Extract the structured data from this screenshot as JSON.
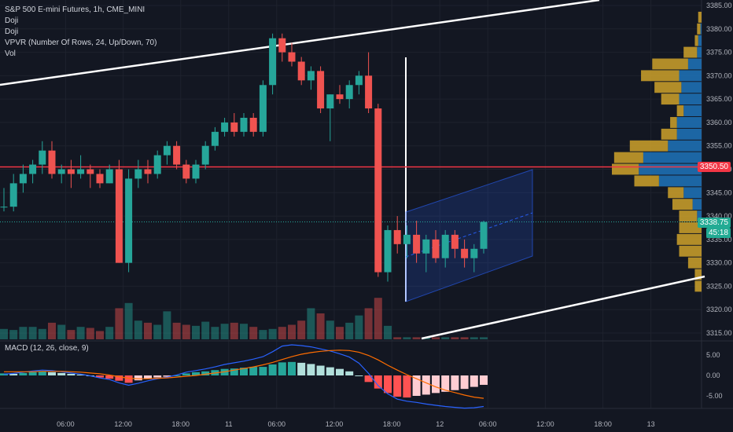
{
  "legend": {
    "symbol": "S&P 500 E-mini Futures, 1h, CME_MINI",
    "indicator1": "Doji",
    "indicator2": "Doji",
    "vpvr": "VPVR (Number Of Rows, 24, Up/Down, 70)",
    "vol": "Vol",
    "macd": "MACD (12, 26, close, 9)"
  },
  "price_axis": {
    "ticks": [
      "3385.00",
      "3380.00",
      "3375.00",
      "3370.00",
      "3365.00",
      "3360.00",
      "3355.00",
      "3350.00",
      "3345.00",
      "3340.00",
      "3335.00",
      "3330.00",
      "3325.00",
      "3320.00",
      "3315.00"
    ],
    "tick_values": [
      3385,
      3380,
      3375,
      3370,
      3365,
      3360,
      3355,
      3350,
      3345,
      3340,
      3335,
      3330,
      3325,
      3320,
      3315
    ],
    "red_tag": "3350.50",
    "last_price": "3338.75",
    "countdown": "45:18"
  },
  "macd_axis": {
    "ticks": [
      "5.00",
      "0.00",
      "-5.00"
    ],
    "tick_values": [
      5,
      0,
      -5
    ]
  },
  "time_axis": {
    "labels": [
      "06:00",
      "12:00",
      "18:00",
      "11",
      "06:00",
      "12:00",
      "18:00",
      "12",
      "06:00",
      "12:00",
      "18:00",
      "13"
    ],
    "bar_index": [
      2,
      8,
      14,
      19,
      24,
      30,
      36,
      41,
      46,
      52,
      58,
      63
    ]
  },
  "colors": {
    "background": "#131722",
    "up": "#26a69a",
    "down": "#ef5350",
    "red_line": "#f23645",
    "vp_up": "#1e6fb3",
    "vp_down": "#c49a2a"
  },
  "chart_data": {
    "type": "candlestick",
    "bars": [
      {
        "o": 3342,
        "h": 3346,
        "l": 3341,
        "c": 3342
      },
      {
        "o": 3342,
        "h": 3349,
        "l": 3341,
        "c": 3347
      },
      {
        "o": 3347,
        "h": 3351,
        "l": 3345,
        "c": 3349
      },
      {
        "o": 3349,
        "h": 3352,
        "l": 3347,
        "c": 3351
      },
      {
        "o": 3351,
        "h": 3356,
        "l": 3349,
        "c": 3354
      },
      {
        "o": 3354,
        "h": 3356,
        "l": 3348,
        "c": 3349
      },
      {
        "o": 3349,
        "h": 3351,
        "l": 3347,
        "c": 3350
      },
      {
        "o": 3350,
        "h": 3352,
        "l": 3346,
        "c": 3349
      },
      {
        "o": 3349,
        "h": 3353,
        "l": 3348,
        "c": 3350
      },
      {
        "o": 3350,
        "h": 3351,
        "l": 3346,
        "c": 3349
      },
      {
        "o": 3349,
        "h": 3350,
        "l": 3346,
        "c": 3347
      },
      {
        "o": 3347,
        "h": 3351,
        "l": 3347,
        "c": 3350
      },
      {
        "o": 3350,
        "h": 3352,
        "l": 3330,
        "c": 3330
      },
      {
        "o": 3330,
        "h": 3350,
        "l": 3328,
        "c": 3348
      },
      {
        "o": 3348,
        "h": 3352,
        "l": 3346,
        "c": 3350
      },
      {
        "o": 3350,
        "h": 3352,
        "l": 3347,
        "c": 3349
      },
      {
        "o": 3349,
        "h": 3354,
        "l": 3348,
        "c": 3353
      },
      {
        "o": 3353,
        "h": 3356,
        "l": 3351,
        "c": 3355
      },
      {
        "o": 3355,
        "h": 3356,
        "l": 3350,
        "c": 3351
      },
      {
        "o": 3351,
        "h": 3352,
        "l": 3347,
        "c": 3348
      },
      {
        "o": 3348,
        "h": 3352,
        "l": 3347,
        "c": 3351
      },
      {
        "o": 3351,
        "h": 3356,
        "l": 3350,
        "c": 3355
      },
      {
        "o": 3355,
        "h": 3359,
        "l": 3354,
        "c": 3358
      },
      {
        "o": 3358,
        "h": 3361,
        "l": 3357,
        "c": 3360
      },
      {
        "o": 3360,
        "h": 3362,
        "l": 3357,
        "c": 3358
      },
      {
        "o": 3358,
        "h": 3362,
        "l": 3357,
        "c": 3361
      },
      {
        "o": 3361,
        "h": 3362,
        "l": 3357,
        "c": 3358
      },
      {
        "o": 3358,
        "h": 3369,
        "l": 3357,
        "c": 3368
      },
      {
        "o": 3368,
        "h": 3379,
        "l": 3366,
        "c": 3378
      },
      {
        "o": 3378,
        "h": 3379,
        "l": 3373,
        "c": 3375
      },
      {
        "o": 3375,
        "h": 3377,
        "l": 3372,
        "c": 3373
      },
      {
        "o": 3373,
        "h": 3374,
        "l": 3368,
        "c": 3369
      },
      {
        "o": 3369,
        "h": 3372,
        "l": 3367,
        "c": 3371
      },
      {
        "o": 3371,
        "h": 3372,
        "l": 3362,
        "c": 3363
      },
      {
        "o": 3363,
        "h": 3366,
        "l": 3356,
        "c": 3366
      },
      {
        "o": 3366,
        "h": 3368,
        "l": 3364,
        "c": 3365
      },
      {
        "o": 3365,
        "h": 3369,
        "l": 3363,
        "c": 3368
      },
      {
        "o": 3368,
        "h": 3371,
        "l": 3366,
        "c": 3370
      },
      {
        "o": 3370,
        "h": 3375,
        "l": 3362,
        "c": 3363
      },
      {
        "o": 3363,
        "h": 3364,
        "l": 3327,
        "c": 3328
      },
      {
        "o": 3328,
        "h": 3338,
        "l": 3326,
        "c": 3337
      },
      {
        "o": 3337,
        "h": 3340,
        "l": 3332,
        "c": 3334
      },
      {
        "o": 3334,
        "h": 3338,
        "l": 3331,
        "c": 3336
      },
      {
        "o": 3336,
        "h": 3339,
        "l": 3330,
        "c": 3332
      },
      {
        "o": 3332,
        "h": 3336,
        "l": 3328,
        "c": 3335
      },
      {
        "o": 3335,
        "h": 3337,
        "l": 3330,
        "c": 3331
      },
      {
        "o": 3331,
        "h": 3337,
        "l": 3329,
        "c": 3336
      },
      {
        "o": 3336,
        "h": 3337,
        "l": 3331,
        "c": 3333
      },
      {
        "o": 3333,
        "h": 3335,
        "l": 3329,
        "c": 3331
      },
      {
        "o": 3331,
        "h": 3334,
        "l": 3328,
        "c": 3333
      },
      {
        "o": 3333,
        "h": 3339,
        "l": 3332,
        "c": 3338.75
      }
    ],
    "volume": [
      10,
      9,
      12,
      12,
      10,
      16,
      14,
      9,
      12,
      11,
      8,
      12,
      30,
      35,
      18,
      16,
      14,
      27,
      16,
      14,
      13,
      17,
      12,
      15,
      16,
      15,
      12,
      9,
      10,
      12,
      14,
      18,
      30,
      25,
      18,
      12,
      16,
      23,
      30,
      40,
      13,
      2,
      2,
      2,
      2,
      2,
      2,
      2,
      2,
      2,
      2
    ],
    "macd_hist": [
      0.5,
      0.4,
      0.6,
      0.8,
      1.0,
      0.8,
      0.6,
      0.4,
      0.2,
      0.0,
      -0.5,
      -0.8,
      -1.3,
      -1.8,
      -1.2,
      -0.8,
      -0.5,
      -0.3,
      0.0,
      0.5,
      0.8,
      1.0,
      1.3,
      1.6,
      1.7,
      1.9,
      2.1,
      2.1,
      2.7,
      3.2,
      3.3,
      3.1,
      2.8,
      2.4,
      2.0,
      1.6,
      1.0,
      0.0,
      -1.6,
      -3.2,
      -4.3,
      -5.2,
      -5.4,
      -5.0,
      -4.7,
      -4.3,
      -4.0,
      -3.6,
      -3.3,
      -2.8,
      -2.3
    ],
    "macd_line": [
      0.3,
      0.5,
      0.8,
      1.1,
      1.3,
      1.2,
      0.9,
      0.6,
      0.3,
      -0.1,
      -0.6,
      -1.0,
      -1.8,
      -2.4,
      -1.9,
      -1.3,
      -0.8,
      -0.4,
      0.1,
      0.8,
      1.2,
      1.6,
      2.1,
      2.7,
      3.1,
      3.5,
      4.0,
      4.6,
      5.8,
      7.2,
      7.5,
      7.3,
      7.0,
      6.5,
      6.0,
      5.3,
      4.5,
      3.0,
      0.5,
      -2.5,
      -4.5,
      -5.8,
      -6.3,
      -6.6,
      -7.0,
      -7.3,
      -7.6,
      -7.8,
      -8.0,
      -7.9,
      -7.6
    ],
    "signal_line": [
      0.9,
      0.9,
      0.9,
      0.9,
      1.0,
      1.0,
      1.0,
      0.9,
      0.8,
      0.6,
      0.4,
      0.1,
      -0.3,
      -0.7,
      -0.8,
      -0.8,
      -0.7,
      -0.6,
      -0.4,
      -0.2,
      0.0,
      0.3,
      0.6,
      0.9,
      1.3,
      1.7,
      2.1,
      2.6,
      3.2,
      3.9,
      4.6,
      5.2,
      5.6,
      5.9,
      6.1,
      6.2,
      6.1,
      5.7,
      4.9,
      3.8,
      2.5,
      1.3,
      0.2,
      -0.8,
      -1.8,
      -2.8,
      -3.6,
      -4.2,
      -4.8,
      -5.3,
      -5.6
    ],
    "volume_profile": [
      {
        "price": 3382.5,
        "up": 0,
        "down": 1.5
      },
      {
        "price": 3380,
        "up": 0.5,
        "down": 1.5
      },
      {
        "price": 3377.5,
        "up": 1.5,
        "down": 1.5
      },
      {
        "price": 3375,
        "up": 2,
        "down": 6
      },
      {
        "price": 3372.5,
        "up": 6,
        "down": 16
      },
      {
        "price": 3370,
        "up": 10,
        "down": 17
      },
      {
        "price": 3367.5,
        "up": 9,
        "down": 12
      },
      {
        "price": 3365,
        "up": 10,
        "down": 8
      },
      {
        "price": 3362.5,
        "up": 8,
        "down": 3
      },
      {
        "price": 3360,
        "up": 11,
        "down": 3
      },
      {
        "price": 3357.5,
        "up": 11,
        "down": 7
      },
      {
        "price": 3355,
        "up": 15,
        "down": 17
      },
      {
        "price": 3352.5,
        "up": 26,
        "down": 13
      },
      {
        "price": 3350,
        "up": 28,
        "down": 12
      },
      {
        "price": 3347.5,
        "up": 19,
        "down": 11
      },
      {
        "price": 3345,
        "up": 8,
        "down": 7
      },
      {
        "price": 3342.5,
        "up": 4,
        "down": 9
      },
      {
        "price": 3340,
        "up": 2,
        "down": 8
      },
      {
        "price": 3337.5,
        "up": 0,
        "down": 10
      },
      {
        "price": 3335,
        "up": 0,
        "down": 11
      },
      {
        "price": 3332.5,
        "up": 0,
        "down": 10
      },
      {
        "price": 3330,
        "up": 0,
        "down": 6
      },
      {
        "price": 3327.5,
        "up": 0,
        "down": 3
      },
      {
        "price": 3325,
        "up": 0,
        "down": 3
      }
    ],
    "ylim": [
      3313,
      3388
    ],
    "macd_ylim": [
      -9,
      9
    ],
    "horizontal_line": 3350.5,
    "last_price": 3338.75
  }
}
